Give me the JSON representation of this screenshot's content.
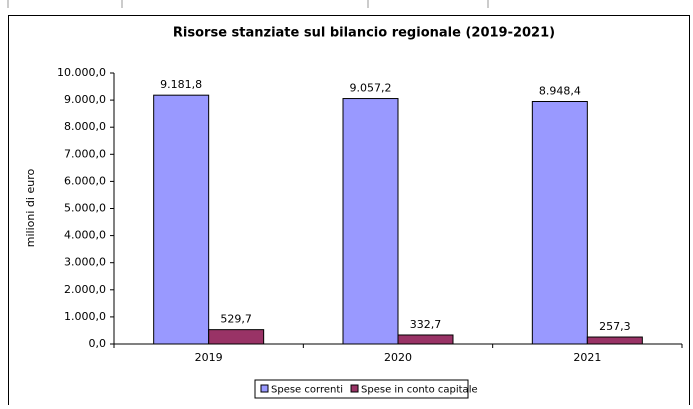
{
  "chart_data": {
    "type": "bar",
    "title": "Risorse stanziate sul bilancio regionale (2019-2021)",
    "y_label": "milioni di euro",
    "categories": [
      "2019",
      "2020",
      "2021"
    ],
    "series": [
      {
        "name": "Spese correnti",
        "color": "#9999ff",
        "values": [
          9181.8,
          9057.2,
          8948.4
        ],
        "value_labels": [
          "9.181,8",
          "9.057,2",
          "8.948,4"
        ]
      },
      {
        "name": "Spese in conto capitale",
        "color": "#993366",
        "values": [
          529.7,
          332.7,
          257.3
        ],
        "value_labels": [
          "529,7",
          "332,7",
          "257,3"
        ]
      }
    ],
    "ylim": [
      0,
      10000
    ],
    "yticks": [
      {
        "value": 0,
        "label": "0,0"
      },
      {
        "value": 1000,
        "label": "1.000,0"
      },
      {
        "value": 2000,
        "label": "2.000,0"
      },
      {
        "value": 3000,
        "label": "3.000,0"
      },
      {
        "value": 4000,
        "label": "4.000,0"
      },
      {
        "value": 5000,
        "label": "5.000,0"
      },
      {
        "value": 6000,
        "label": "6.000,0"
      },
      {
        "value": 7000,
        "label": "7.000,0"
      },
      {
        "value": 8000,
        "label": "8.000,0"
      },
      {
        "value": 9000,
        "label": "9.000,0"
      },
      {
        "value": 10000,
        "label": "10.000,0"
      }
    ],
    "grid": false,
    "legend": "bottom"
  }
}
